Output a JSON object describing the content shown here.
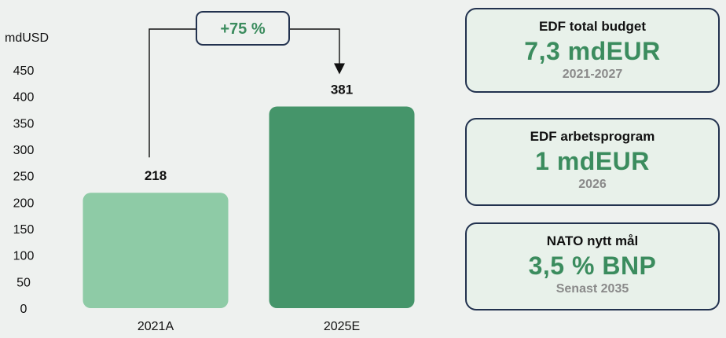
{
  "chart_data": {
    "type": "bar",
    "ylabel": "mdUSD",
    "ylim": [
      0,
      450
    ],
    "yticks": [
      0,
      50,
      100,
      150,
      200,
      250,
      300,
      350,
      400,
      450
    ],
    "categories": [
      "2021A",
      "2025E"
    ],
    "values": [
      218,
      381
    ],
    "data_labels": [
      "218",
      "381"
    ],
    "bar_colors": [
      "#8ecba6",
      "#45956a"
    ],
    "annotation": {
      "label": "+75 %",
      "color": "#3b8c5e"
    },
    "grid": false,
    "legend": "none"
  },
  "cards": [
    {
      "title": "EDF total budget",
      "value": "7,3 mdEUR",
      "sub": "2021-2027"
    },
    {
      "title": "EDF arbetsprogram",
      "value": "1 mdEUR",
      "sub": "2026"
    },
    {
      "title": "NATO nytt mål",
      "value": "3,5 % BNP",
      "sub": "Senast 2035"
    }
  ],
  "colors": {
    "accent": "#3b8c5e",
    "card_border": "#22324f",
    "card_bg": "#e8f1ea",
    "background": "#eef1ef"
  }
}
